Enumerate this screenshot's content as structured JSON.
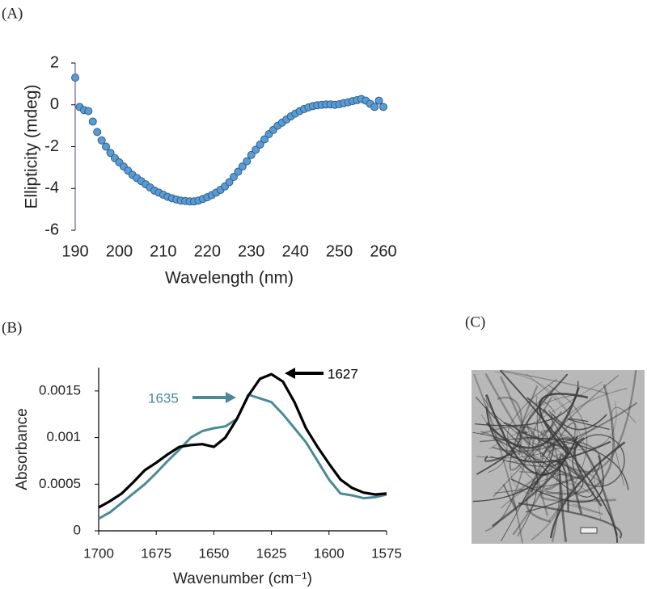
{
  "panel_labels": [
    "(A)",
    "(B)",
    "(C)"
  ],
  "chart_data": [
    {
      "type": "scatter",
      "xlabel": "Wavelength (nm)",
      "ylabel": "Ellipticity (mdeg)",
      "x": [
        190,
        191,
        192,
        193,
        194,
        195,
        196,
        197,
        198,
        199,
        200,
        201,
        202,
        203,
        204,
        205,
        206,
        207,
        208,
        209,
        210,
        211,
        212,
        213,
        214,
        215,
        216,
        217,
        218,
        219,
        220,
        221,
        222,
        223,
        224,
        225,
        226,
        227,
        228,
        229,
        230,
        231,
        232,
        233,
        234,
        235,
        236,
        237,
        238,
        239,
        240,
        241,
        242,
        243,
        244,
        245,
        246,
        247,
        248,
        249,
        250,
        251,
        252,
        253,
        254,
        255,
        256,
        257,
        258,
        259,
        260
      ],
      "series": [
        {
          "color": "#5b9bd5",
          "values": [
            1.3,
            -0.1,
            -0.25,
            -0.3,
            -0.8,
            -1.3,
            -1.7,
            -2.0,
            -2.3,
            -2.55,
            -2.75,
            -2.95,
            -3.15,
            -3.35,
            -3.5,
            -3.65,
            -3.8,
            -3.95,
            -4.1,
            -4.2,
            -4.3,
            -4.4,
            -4.47,
            -4.53,
            -4.58,
            -4.6,
            -4.62,
            -4.62,
            -4.58,
            -4.5,
            -4.42,
            -4.32,
            -4.2,
            -4.07,
            -3.9,
            -3.7,
            -3.45,
            -3.2,
            -2.95,
            -2.7,
            -2.4,
            -2.15,
            -1.9,
            -1.65,
            -1.4,
            -1.2,
            -1.0,
            -0.85,
            -0.7,
            -0.55,
            -0.42,
            -0.3,
            -0.2,
            -0.12,
            -0.06,
            -0.02,
            0.0,
            0.02,
            0.02,
            0.0,
            0.03,
            0.08,
            0.12,
            0.18,
            0.22,
            0.28,
            0.2,
            0.05,
            -0.1,
            0.2,
            -0.1
          ]
        }
      ],
      "xlim": [
        190,
        260
      ],
      "xticks": [
        190,
        200,
        210,
        220,
        230,
        240,
        250,
        260
      ],
      "ylim": [
        -6,
        2
      ],
      "yticks": [
        -6,
        -4,
        -2,
        0,
        2
      ]
    },
    {
      "type": "line",
      "xlabel": "Wavenumber (cm⁻¹)",
      "ylabel": "Absorbance",
      "x": [
        1700,
        1695,
        1690,
        1685,
        1680,
        1675,
        1670,
        1665,
        1660,
        1655,
        1650,
        1645,
        1640,
        1635,
        1630,
        1625,
        1620,
        1615,
        1610,
        1605,
        1600,
        1595,
        1590,
        1585,
        1580,
        1575
      ],
      "series": [
        {
          "color": "#000000",
          "values": [
            0.00025,
            0.00032,
            0.0004,
            0.00052,
            0.00065,
            0.00073,
            0.00082,
            0.0009,
            0.00092,
            0.00093,
            0.0009,
            0.001,
            0.0012,
            0.00145,
            0.00163,
            0.00168,
            0.0016,
            0.00138,
            0.0011,
            0.0009,
            0.00072,
            0.00055,
            0.00046,
            0.00041,
            0.00039,
            0.0004
          ]
        },
        {
          "color": "#4a8a96",
          "values": [
            0.00013,
            0.0002,
            0.0003,
            0.0004,
            0.0005,
            0.00062,
            0.00075,
            0.00087,
            0.001,
            0.00107,
            0.0011,
            0.00112,
            0.0012,
            0.00146,
            0.00142,
            0.00138,
            0.00125,
            0.0011,
            0.00095,
            0.00075,
            0.00055,
            0.0004,
            0.00038,
            0.00035,
            0.00036,
            0.00039
          ]
        }
      ],
      "annotations": [
        {
          "text": "1627",
          "color": "#000000"
        },
        {
          "text": "1635",
          "color": "#4a8a96"
        }
      ],
      "xlim": [
        1700,
        1575
      ],
      "xticks": [
        1700,
        1675,
        1650,
        1625,
        1600,
        1575
      ],
      "ylim": [
        0,
        0.00175
      ],
      "yticks": [
        0,
        0.0005,
        0.001,
        0.0015
      ]
    }
  ]
}
